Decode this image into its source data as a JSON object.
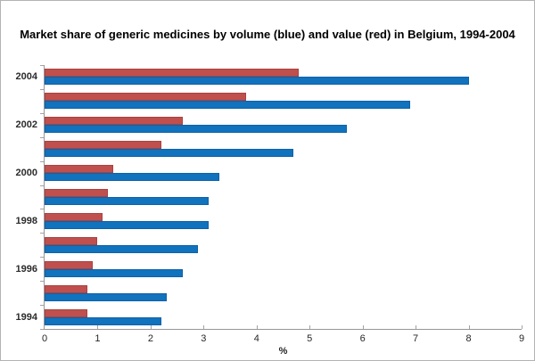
{
  "window": {
    "background": "#ffffff",
    "border_color": "#b3b3b3"
  },
  "chart_data": {
    "type": "bar",
    "orientation": "horizontal",
    "title": "Market share of generic medicines by volume (blue) and value (red) in Belgium, 1994-2004",
    "xlabel": "%",
    "xlim": [
      0,
      9
    ],
    "x_ticks": [
      "0",
      "1",
      "2",
      "3",
      "4",
      "5",
      "6",
      "7",
      "8",
      "9"
    ],
    "grid": false,
    "legend_position": "none",
    "categories": [
      "2004",
      "2003",
      "2002",
      "2001",
      "2000",
      "1999",
      "1998",
      "1997",
      "1996",
      "1995",
      "1994"
    ],
    "category_axis_labels_visible": [
      "2004",
      "2002",
      "2000",
      "1998",
      "1996",
      "1994"
    ],
    "series": [
      {
        "name": "value (red)",
        "color": "#c0504d",
        "values": [
          4.8,
          3.8,
          2.6,
          2.2,
          1.3,
          1.2,
          1.1,
          1.0,
          0.9,
          0.8,
          0.8
        ]
      },
      {
        "name": "volume (blue)",
        "color": "#1172bd",
        "values": [
          8.0,
          6.9,
          5.7,
          4.7,
          3.3,
          3.1,
          3.1,
          2.9,
          2.6,
          2.3,
          2.2
        ]
      }
    ]
  }
}
